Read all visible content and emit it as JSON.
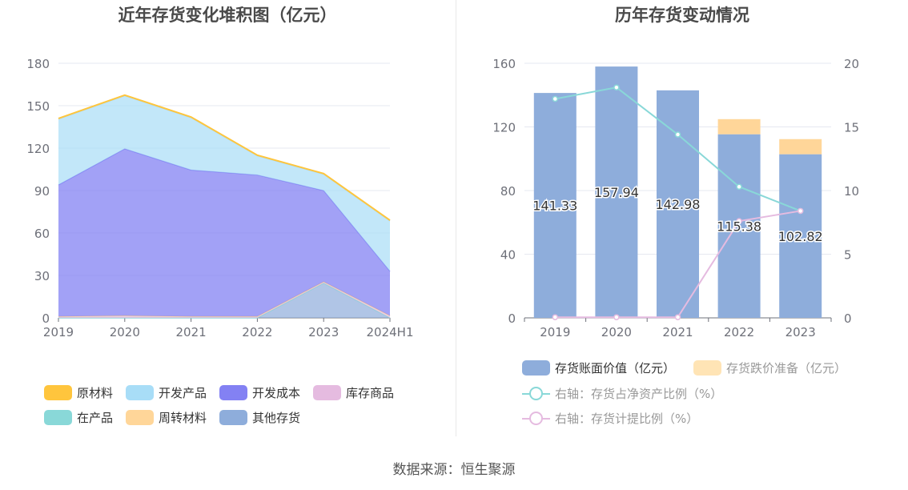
{
  "source_text": "数据来源：恒生聚源",
  "chart_data": [
    {
      "type": "area",
      "title": "近年存货变化堆积图（亿元）",
      "x": [
        "2019",
        "2020",
        "2021",
        "2022",
        "2023",
        "2024H1"
      ],
      "ylim": [
        0,
        180
      ],
      "yticks": [
        0,
        30,
        60,
        90,
        120,
        150,
        180
      ],
      "stacked": true,
      "grid": true,
      "legend_position": "bottom",
      "series": [
        {
          "name": "其他存货",
          "color": "#8EADDB",
          "values": [
            0,
            0,
            0,
            0,
            24.5,
            0
          ]
        },
        {
          "name": "在产品",
          "color": "#89D8D8",
          "values": [
            0,
            0,
            0,
            0,
            0,
            0
          ]
        },
        {
          "name": "库存商品",
          "color": "#E5BBE0",
          "values": [
            1.0,
            1.5,
            1.0,
            1.0,
            1.0,
            1.5
          ]
        },
        {
          "name": "周转材料",
          "color": "#FFD699",
          "values": [
            0,
            0,
            0,
            0,
            0,
            0
          ]
        },
        {
          "name": "开发成本",
          "color": "#8381F3",
          "values": [
            93,
            118,
            103.5,
            100,
            64.5,
            31.5
          ]
        },
        {
          "name": "开发产品",
          "color": "#A8DDF7",
          "values": [
            46.5,
            37.5,
            37,
            13.5,
            11.5,
            35.5
          ]
        },
        {
          "name": "原材料",
          "color": "#FFC53D",
          "values": [
            0.5,
            0.5,
            0.5,
            0.5,
            0.5,
            0.5
          ]
        }
      ],
      "legend_order": [
        "原材料",
        "开发产品",
        "开发成本",
        "库存商品",
        "在产品",
        "周转材料",
        "其他存货"
      ]
    },
    {
      "type": "bar",
      "title": "历年存货变动情况",
      "categories": [
        "2019",
        "2020",
        "2021",
        "2022",
        "2023"
      ],
      "ylim": [
        0,
        160
      ],
      "yticks": [
        0,
        40,
        80,
        120,
        160
      ],
      "y2lim": [
        0,
        20
      ],
      "y2ticks": [
        0,
        5,
        10,
        15,
        20
      ],
      "grid": true,
      "legend_position": "bottom",
      "series": [
        {
          "name": "存货账面价值（亿元）",
          "type": "bar",
          "color": "#8EADDB",
          "values": [
            141.33,
            157.94,
            142.98,
            115.38,
            102.82
          ],
          "labels": [
            "141.33",
            "157.94",
            "142.98",
            "115.38",
            "102.82"
          ]
        },
        {
          "name": "存货跌价准备（亿元）",
          "type": "bar",
          "stacked": true,
          "color": "#FFE4B5",
          "values": [
            0,
            0,
            0,
            9.5,
            9.5
          ]
        },
        {
          "name": "右轴：存货占净资产比例（%）",
          "type": "line",
          "axis": "right",
          "color": "#89D8D8",
          "values": [
            17.2,
            18.1,
            14.4,
            10.3,
            8.4
          ]
        },
        {
          "name": "右轴：存货计提比例（%）",
          "type": "line",
          "axis": "right",
          "color": "#E5BBE0",
          "values": [
            0.05,
            0.05,
            0.05,
            7.6,
            8.4
          ]
        }
      ]
    }
  ]
}
